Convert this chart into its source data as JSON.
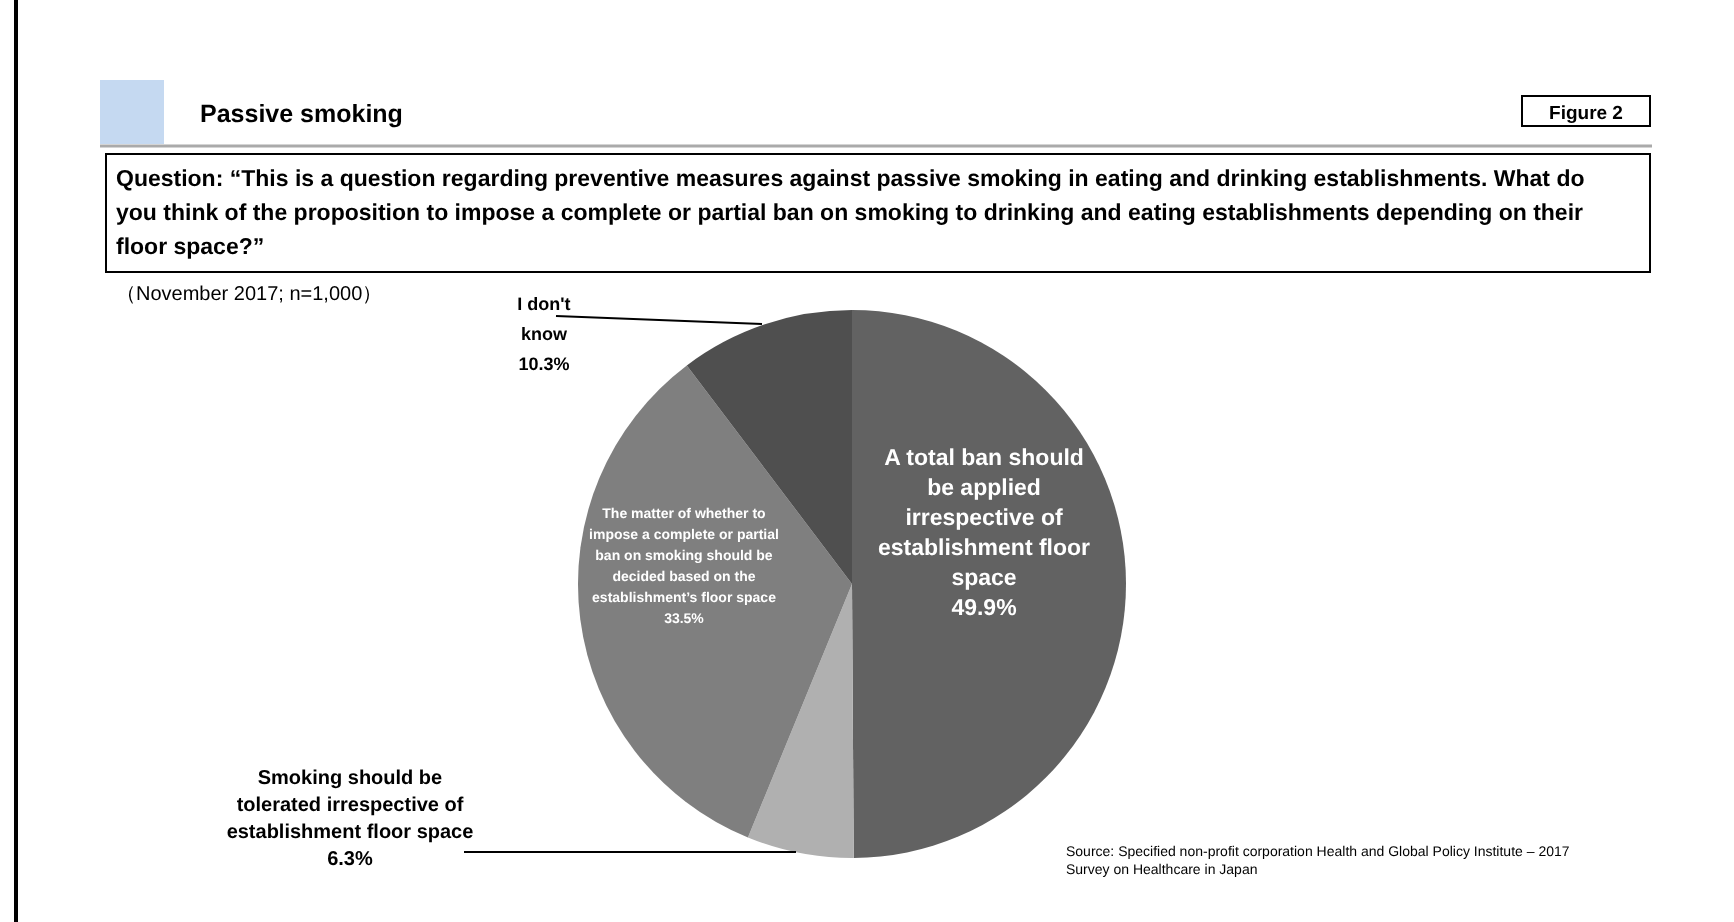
{
  "chart_data": {
    "type": "pie",
    "title": "Passive smoking",
    "subtitle": "（November 2017; n=1,000）",
    "categories": [
      "A total ban should be applied irrespective of establishment floor space",
      "Smoking should be tolerated irrespective of establishment floor space",
      "The matter of whether to impose a complete or partial ban on smoking should be decided based on the establishment’s floor space",
      "I don't know"
    ],
    "values": [
      49.9,
      6.3,
      33.5,
      10.3
    ],
    "colors": [
      "#626262",
      "#b0b0b0",
      "#7f7f7f",
      "#4f4f4f"
    ],
    "value_labels": [
      "49.9%",
      "6.3%",
      "33.5%",
      "10.3%"
    ],
    "annotations": [
      "Figure 2",
      "Question: “This is a question regarding preventive measures against passive smoking in eating and drinking establishments. What do you think of the proposition to impose a complete or partial ban on smoking to drinking and eating establishments depending on their floor space?”",
      "Source: Specified non-profit corporation Health and Global Policy Institute – 2017 Survey on Healthcare in Japan"
    ]
  }
}
